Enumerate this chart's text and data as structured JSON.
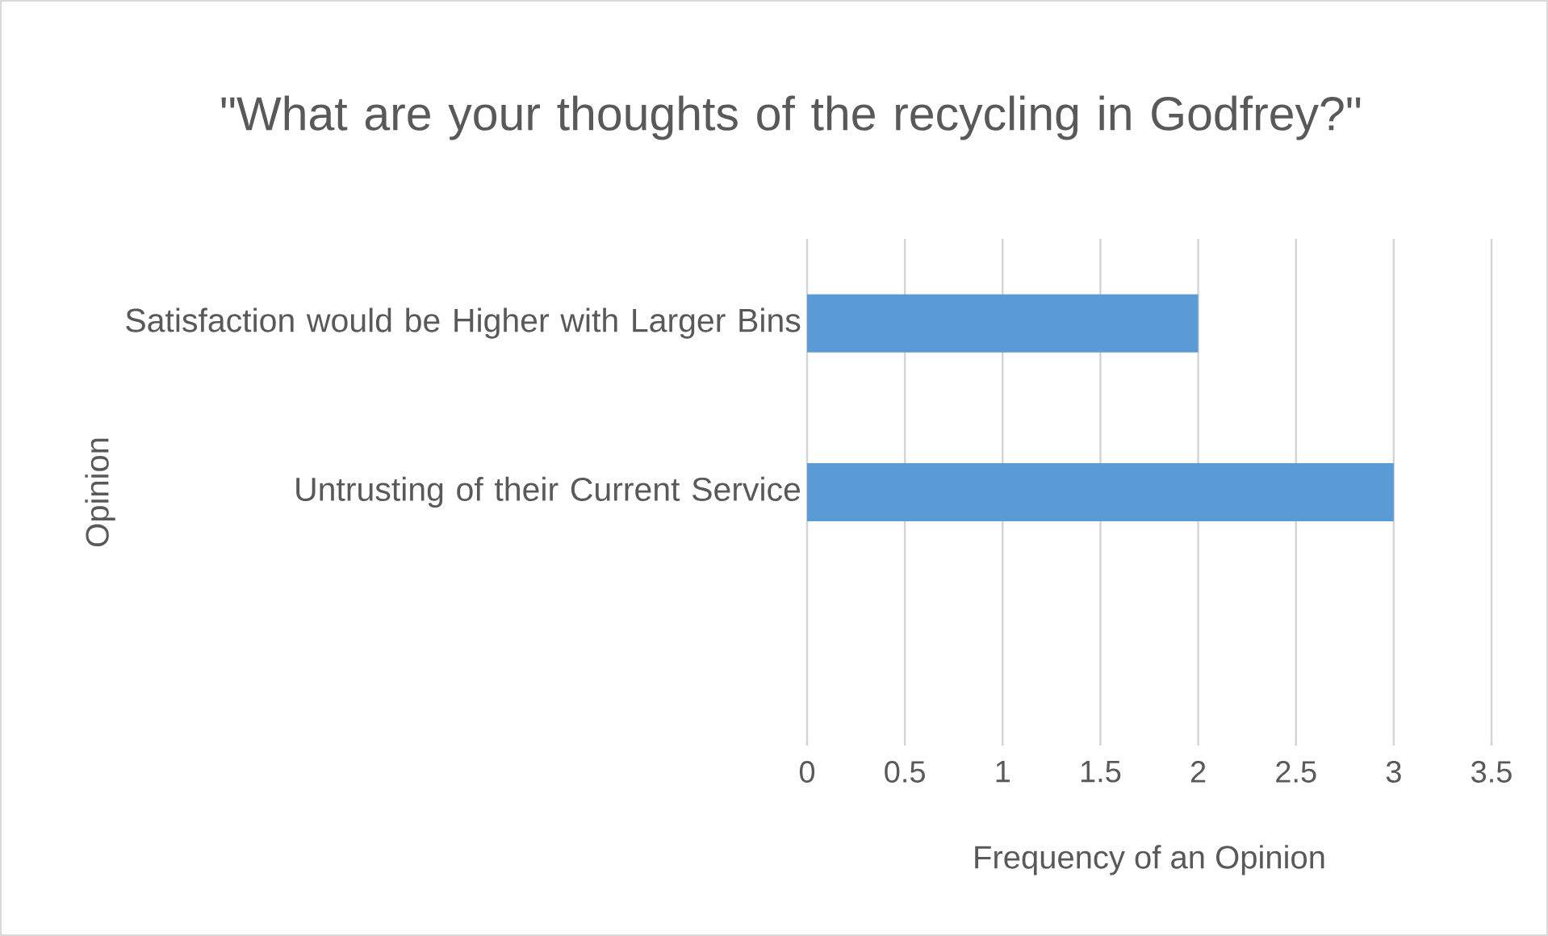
{
  "chart_data": {
    "type": "bar",
    "orientation": "horizontal",
    "title": "\"What are your thoughts of the recycling in Godfrey?\"",
    "xlabel": "Frequency of an Opinion",
    "ylabel": "Opinion",
    "categories": [
      "Satisfaction would be Higher with Larger Bins",
      "Untrusting of their Current Service",
      null
    ],
    "values": [
      2,
      3,
      null
    ],
    "color": "#5b9bd5",
    "xlim": [
      0,
      3.5
    ],
    "xticks": [
      0,
      0.5,
      1,
      1.5,
      2,
      2.5,
      3,
      3.5
    ],
    "grid": "x"
  }
}
